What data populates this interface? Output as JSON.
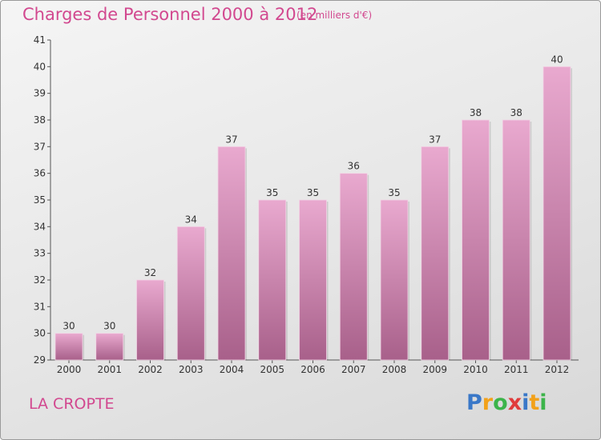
{
  "header": {
    "title": "Charges de Personnel 2000 à 2012",
    "subtitle": "(en milliers d'€)"
  },
  "footer": {
    "commune": "LA CROPTE",
    "logo_letters": [
      "P",
      "r",
      "o",
      "x",
      "i",
      "t",
      "i"
    ],
    "logo_colors": [
      "#3a78c8",
      "#f2a11a",
      "#3cb44a",
      "#e03b3b",
      "#3a78c8",
      "#f2a11a",
      "#3cb44a"
    ]
  },
  "colors": {
    "accent": "#d2488f",
    "bar_top": "#e9a9cf",
    "bar_bottom": "#a8608a"
  },
  "chart_data": {
    "type": "bar",
    "title": "Charges de Personnel 2000 à 2012",
    "subtitle": "(en milliers d'€)",
    "categories": [
      "2000",
      "2001",
      "2002",
      "2003",
      "2004",
      "2005",
      "2006",
      "2007",
      "2008",
      "2009",
      "2010",
      "2011",
      "2012"
    ],
    "values": [
      30,
      30,
      32,
      34,
      37,
      35,
      35,
      36,
      35,
      37,
      38,
      38,
      40
    ],
    "ylim": [
      29,
      41
    ],
    "yticks": [
      29,
      30,
      31,
      32,
      33,
      34,
      35,
      36,
      37,
      38,
      39,
      40,
      41
    ],
    "grid": false,
    "data_labels": true
  }
}
